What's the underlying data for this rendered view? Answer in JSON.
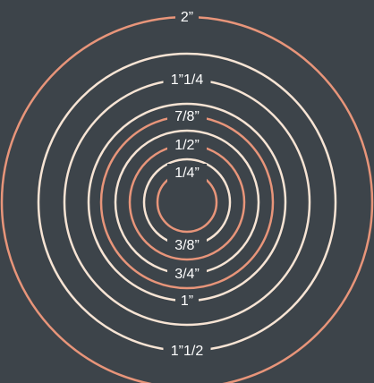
{
  "background": "#3d444a",
  "colors": {
    "orange": "#e8957a",
    "cream": "#f7e4d4"
  },
  "rings": [
    {
      "label": "1/4”",
      "size_in": 0.25,
      "color": "orange",
      "label_side": "top"
    },
    {
      "label": "3/8”",
      "size_in": 0.375,
      "color": "cream",
      "label_side": "bottom"
    },
    {
      "label": "1/2”",
      "size_in": 0.5,
      "color": "orange",
      "label_side": "top"
    },
    {
      "label": "3/4”",
      "size_in": 0.75,
      "color": "cream",
      "label_side": "bottom"
    },
    {
      "label": "7/8”",
      "size_in": 0.875,
      "color": "orange",
      "label_side": "top"
    },
    {
      "label": "1”",
      "size_in": 1.0,
      "color": "cream",
      "label_side": "bottom"
    },
    {
      "label": "1”1/4",
      "size_in": 1.25,
      "color": "cream",
      "label_side": "top"
    },
    {
      "label": "1”1/2",
      "size_in": 1.5,
      "color": "cream",
      "label_side": "bottom"
    },
    {
      "label": "2”",
      "size_in": 2.0,
      "color": "orange",
      "label_side": "top"
    }
  ]
}
